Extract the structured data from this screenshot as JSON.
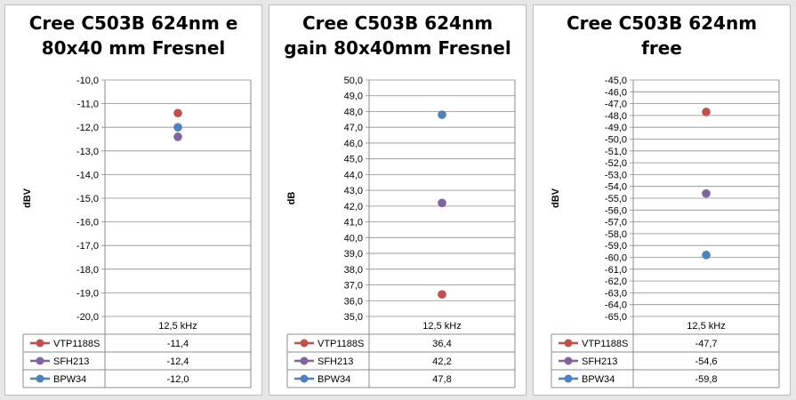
{
  "chart_data": [
    {
      "type": "scatter",
      "title_lines": [
        "Cree C503B 624nm e",
        "80x40 mm Fresnel"
      ],
      "ylabel": "dBV",
      "categories": [
        "12,5 kHz"
      ],
      "ylim": [
        -20,
        -10
      ],
      "ytick_step": 1,
      "ytick_labels": [
        "-20,0",
        "-19,0",
        "-18,0",
        "-17,0",
        "-16,0",
        "-15,0",
        "-14,0",
        "-13,0",
        "-12,0",
        "-11,0",
        "-10,0"
      ],
      "series": [
        {
          "name": "VTP1188S",
          "color": "#c0504d",
          "values": [
            -11.4
          ],
          "label": "-11,4"
        },
        {
          "name": "SFH213",
          "color": "#8064a2",
          "values": [
            -12.4
          ],
          "label": "-12,4"
        },
        {
          "name": "BPW34",
          "color": "#4f81bd",
          "values": [
            -12.0
          ],
          "label": "-12,0"
        }
      ]
    },
    {
      "type": "scatter",
      "title_lines": [
        "Cree C503B 624nm",
        "gain 80x40mm Fresnel"
      ],
      "ylabel": "dB",
      "categories": [
        "12,5 kHz"
      ],
      "ylim": [
        35,
        50
      ],
      "ytick_step": 1,
      "ytick_labels": [
        "35,0",
        "36,0",
        "37,0",
        "38,0",
        "39,0",
        "40,0",
        "41,0",
        "42,0",
        "43,0",
        "44,0",
        "45,0",
        "46,0",
        "47,0",
        "48,0",
        "49,0",
        "50,0"
      ],
      "series": [
        {
          "name": "VTP1188S",
          "color": "#c0504d",
          "values": [
            36.4
          ],
          "label": "36,4"
        },
        {
          "name": "SFH213",
          "color": "#8064a2",
          "values": [
            42.2
          ],
          "label": "42,2"
        },
        {
          "name": "BPW34",
          "color": "#4f81bd",
          "values": [
            47.8
          ],
          "label": "47,8"
        }
      ]
    },
    {
      "type": "scatter",
      "title_lines": [
        "Cree C503B 624nm",
        "free"
      ],
      "ylabel": "dBV",
      "categories": [
        "12,5 kHz"
      ],
      "ylim": [
        -65,
        -45
      ],
      "ytick_step": 1,
      "ytick_labels": [
        "-65,0",
        "-64,0",
        "-63,0",
        "-62,0",
        "-61,0",
        "-60,0",
        "-59,0",
        "-58,0",
        "-57,0",
        "-56,0",
        "-55,0",
        "-54,0",
        "-53,0",
        "-52,0",
        "-51,0",
        "-50,0",
        "-49,0",
        "-48,0",
        "-47,0",
        "-46,0",
        "-45,0"
      ],
      "series": [
        {
          "name": "VTP1188S",
          "color": "#c0504d",
          "values": [
            -47.7
          ],
          "label": "-47,7"
        },
        {
          "name": "SFH213",
          "color": "#8064a2",
          "values": [
            -54.6
          ],
          "label": "-54,6"
        },
        {
          "name": "BPW34",
          "color": "#4f81bd",
          "values": [
            -59.8
          ],
          "label": "-59,8"
        }
      ]
    }
  ]
}
